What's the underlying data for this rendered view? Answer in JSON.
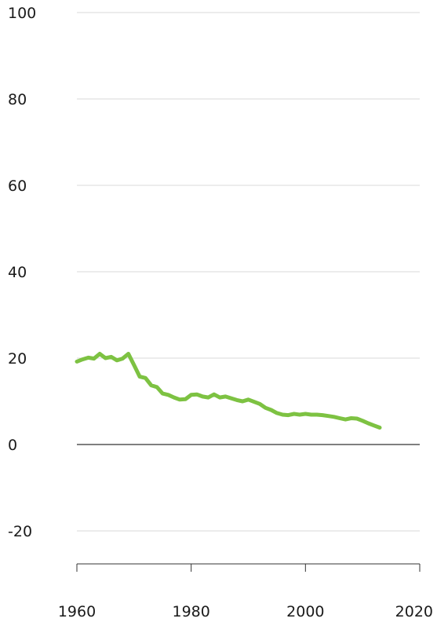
{
  "chart_data": {
    "type": "line",
    "title": "",
    "xlabel": "",
    "ylabel": "",
    "xlim": [
      1960,
      2020
    ],
    "ylim": [
      -28,
      100
    ],
    "grid": true,
    "x_ticks": [
      1960,
      1980,
      2000,
      2020
    ],
    "x_tick_labels": [
      "1960",
      "1980",
      "2000",
      "2020"
    ],
    "y_ticks": [
      100,
      80,
      60,
      40,
      20,
      0,
      -20
    ],
    "y_tick_labels": [
      "100",
      "80",
      "60",
      "40",
      "20",
      "0",
      "-20"
    ],
    "series": [
      {
        "color": "#7dc242",
        "x": [
          1960,
          1961,
          1962,
          1963,
          1964,
          1965,
          1966,
          1967,
          1968,
          1969,
          1970,
          1971,
          1972,
          1973,
          1974,
          1975,
          1976,
          1977,
          1978,
          1979,
          1980,
          1981,
          1982,
          1983,
          1984,
          1985,
          1986,
          1987,
          1988,
          1989,
          1990,
          1991,
          1992,
          1993,
          1994,
          1995,
          1996,
          1997,
          1998,
          1999,
          2000,
          2001,
          2002,
          2003,
          2004,
          2005,
          2006,
          2007,
          2008,
          2009,
          2010,
          2011,
          2012,
          2013
        ],
        "values": [
          19.2,
          19.7,
          20.1,
          19.9,
          21.0,
          20.0,
          20.3,
          19.5,
          19.9,
          21.0,
          18.4,
          15.7,
          15.4,
          13.7,
          13.3,
          11.8,
          11.5,
          10.9,
          10.4,
          10.5,
          11.5,
          11.6,
          11.1,
          10.9,
          11.6,
          10.9,
          11.1,
          10.7,
          10.3,
          10.0,
          10.4,
          9.9,
          9.4,
          8.5,
          8.0,
          7.3,
          6.9,
          6.8,
          7.1,
          6.9,
          7.1,
          6.9,
          6.9,
          6.8,
          6.6,
          6.4,
          6.1,
          5.8,
          6.1,
          6.0,
          5.5,
          4.9,
          4.4,
          3.9
        ]
      }
    ],
    "colors": {
      "zero_line": "#7f7f7f",
      "grid": "#d9d9d9",
      "axis": "#333333"
    }
  }
}
